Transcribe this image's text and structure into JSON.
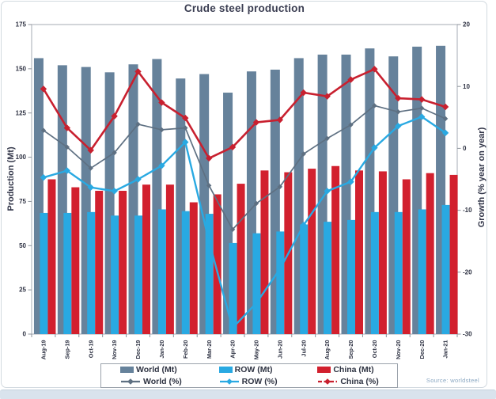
{
  "chart_data": {
    "type": "combo-bar-line",
    "title": "Crude steel production",
    "left_axis": {
      "label": "Production (Mt)",
      "min": 0,
      "max": 175,
      "ticks": [
        0,
        25,
        50,
        75,
        100,
        125,
        150,
        175
      ]
    },
    "right_axis": {
      "label": "Growth (% year on year)",
      "min": -30,
      "max": 20,
      "ticks": [
        20,
        10,
        0,
        -10,
        -20,
        -30
      ]
    },
    "categories": [
      "Aug-19",
      "Sep-19",
      "Oct-19",
      "Nov-19",
      "Dec-19",
      "Jan-20",
      "Feb-20",
      "Mar-20",
      "Apr-20",
      "May-20",
      "Jun-20",
      "Jul-20",
      "Aug-20",
      "Sep-20",
      "Oct-20",
      "Nov-20",
      "Dec-20",
      "Jan-21"
    ],
    "bar_series": [
      {
        "name": "World (Mt)",
        "axis": "left",
        "color": "#66829b",
        "values": [
          156,
          152,
          151,
          148,
          152.5,
          155.5,
          144.5,
          147,
          136.5,
          148.5,
          149.5,
          156,
          158,
          158,
          161.5,
          157,
          162.5,
          163
        ]
      },
      {
        "name": "ROW (Mt)",
        "axis": "left",
        "color": "#29a9e2",
        "values": [
          68.5,
          68.5,
          69,
          67,
          67,
          70.5,
          69.5,
          68,
          51.5,
          57,
          58,
          62,
          63.5,
          64.5,
          69,
          69,
          70.5,
          73
        ]
      },
      {
        "name": "China (Mt)",
        "axis": "left",
        "color": "#d2202e",
        "values": [
          87.5,
          83,
          81,
          81,
          84.5,
          84.5,
          74.5,
          79,
          85,
          92.5,
          91.5,
          93.5,
          95,
          92.5,
          92,
          87.5,
          91,
          90
        ]
      }
    ],
    "line_series": [
      {
        "name": "World (%)",
        "axis": "right",
        "color": "#5e7082",
        "width": 1.7,
        "marker": 3.2,
        "legend_dash": "",
        "values": [
          2.9,
          0.2,
          -3.2,
          -0.7,
          3.9,
          3.0,
          3.3,
          -6.0,
          -13.1,
          -8.9,
          -6.2,
          -0.9,
          1.6,
          3.8,
          6.9,
          5.9,
          6.5,
          4.8
        ]
      },
      {
        "name": "ROW (%)",
        "axis": "right",
        "color": "#29a9e2",
        "width": 2.4,
        "marker": 4.2,
        "legend_dash": "",
        "values": [
          -4.7,
          -3.6,
          -6.3,
          -6.9,
          -5.0,
          -2.8,
          1.0,
          -15.0,
          -29.0,
          -25.0,
          -19.5,
          -12.4,
          -6.9,
          -5.4,
          0.1,
          3.6,
          5.1,
          2.5
        ]
      },
      {
        "name": "China (%)",
        "axis": "right",
        "color": "#c8202f",
        "width": 2.6,
        "marker": 4.2,
        "legend_dash": "5,2.5",
        "values": [
          9.6,
          3.3,
          -0.3,
          5.2,
          12.4,
          7.4,
          4.9,
          -1.6,
          0.2,
          4.2,
          4.6,
          9.0,
          8.4,
          11.1,
          12.8,
          8.1,
          7.9,
          6.7
        ]
      }
    ],
    "legend": {
      "position": "bottom",
      "row1": [
        "World (Mt)",
        "ROW (Mt)",
        "China (Mt)"
      ],
      "row2": [
        "World (%)",
        "ROW (%)",
        "China (%)"
      ]
    },
    "source": "Source: worldsteel"
  }
}
